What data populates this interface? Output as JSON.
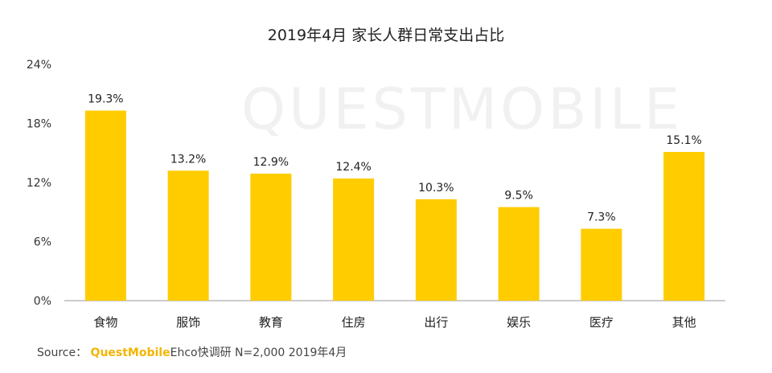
{
  "chart_data": {
    "type": "bar",
    "title": "2019年4月 家长人群日常支出占比",
    "categories": [
      "食物",
      "服饰",
      "教育",
      "住房",
      "出行",
      "娱乐",
      "医疗",
      "其他"
    ],
    "values": [
      19.3,
      13.2,
      12.9,
      12.4,
      10.3,
      9.5,
      7.3,
      15.1
    ],
    "value_labels": [
      "19.3%",
      "13.2%",
      "12.9%",
      "12.4%",
      "10.3%",
      "9.5%",
      "7.3%",
      "15.1%"
    ],
    "ylim": [
      0,
      24
    ],
    "yticks": [
      0,
      6,
      12,
      18,
      24
    ],
    "ytick_labels": [
      "0%",
      "6%",
      "12%",
      "18%",
      "24%"
    ],
    "xlabel": "",
    "ylabel": "",
    "grid": false,
    "bar_color": "#FFCC00"
  },
  "watermark": "QUESTMOBILE",
  "source": {
    "prefix": "Source：",
    "brand": "QuestMobile",
    "rest": "Ehco快调研 N=2,000 2019年4月"
  }
}
